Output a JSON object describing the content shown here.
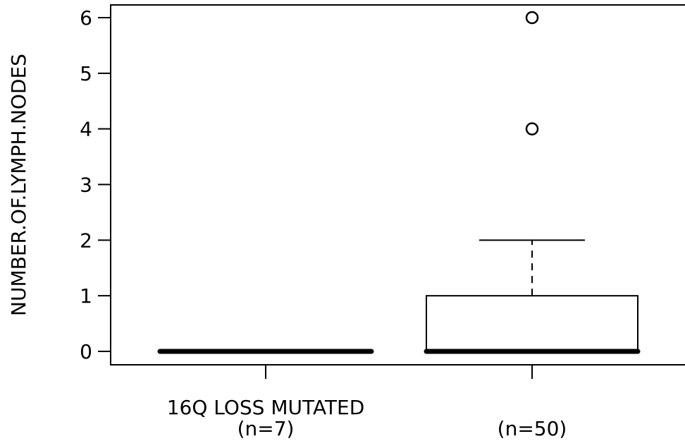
{
  "chart_data": {
    "type": "box",
    "ylabel": "NUMBER.OF.LYMPH.NODES",
    "ylim": [
      -0.25,
      6.25
    ],
    "yticks": [
      0,
      1,
      2,
      3,
      4,
      5,
      6
    ],
    "groups": [
      {
        "label_lines": [
          "16Q LOSS MUTATED",
          "(n=7)"
        ],
        "min": 0,
        "q1": 0,
        "median": 0,
        "q3": 0,
        "max": 0,
        "outliers": []
      },
      {
        "label_lines": [
          "",
          "(n=50)"
        ],
        "min": 0,
        "q1": 0,
        "median": 0,
        "q3": 1,
        "max": 2,
        "outliers": [
          4,
          6
        ]
      }
    ]
  }
}
